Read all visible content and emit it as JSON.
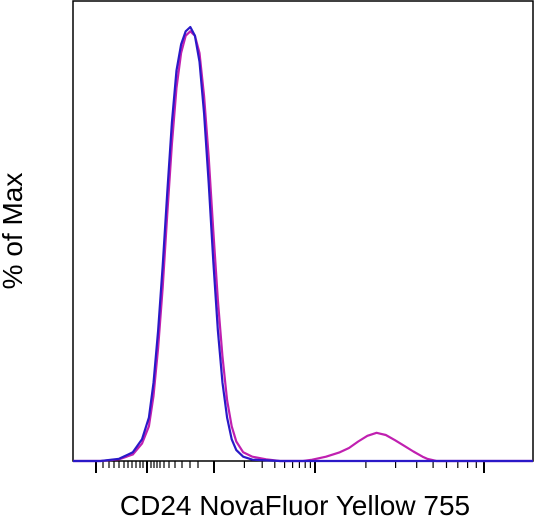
{
  "chart_data": {
    "type": "line",
    "title": "",
    "xlabel": "CD24 NovaFluor Yellow 755",
    "ylabel": "% of Max",
    "xscale": "biexponential (log-like)",
    "xlim": [
      0,
      100
    ],
    "ylim": [
      0,
      100
    ],
    "grid": false,
    "legend": "none",
    "series": [
      {
        "color": "#2a19c8",
        "x": [
          0,
          6,
          10,
          13,
          15,
          16.5,
          17.5,
          18.5,
          19.5,
          20.5,
          21.5,
          22.5,
          23.5,
          24.5,
          25.5,
          26.5,
          27.5,
          28.5,
          29.5,
          30.5,
          31.5,
          32.5,
          33.5,
          34.5,
          35.5,
          37,
          39,
          45,
          100
        ],
        "y": [
          0,
          0,
          0.5,
          2,
          5,
          10,
          18,
          30,
          45,
          62,
          78,
          90,
          96,
          99,
          100,
          98,
          92,
          80,
          64,
          46,
          30,
          18,
          10,
          5,
          2.5,
          1,
          0.3,
          0,
          0
        ]
      },
      {
        "color": "#c020b0",
        "x": [
          0,
          6,
          10,
          13,
          15,
          16.5,
          17.5,
          18.5,
          19.5,
          20.5,
          21.5,
          22.5,
          23.5,
          24.5,
          25.5,
          26.5,
          27.5,
          28.5,
          29.5,
          30.5,
          31.5,
          32.5,
          33.5,
          34.5,
          35.5,
          37,
          39,
          42,
          45,
          48,
          50,
          52,
          55,
          58,
          60,
          62,
          64,
          66,
          68,
          70,
          72,
          74,
          76,
          77,
          79,
          100
        ],
        "y": [
          0,
          0,
          0.4,
          1.5,
          4,
          8,
          15,
          26,
          40,
          57,
          73,
          86,
          94,
          98,
          99,
          98,
          94,
          84,
          70,
          53,
          37,
          24,
          14,
          8,
          4.5,
          2,
          1,
          0.4,
          0,
          0,
          0,
          0.3,
          1,
          2,
          3,
          4.5,
          5.8,
          6.5,
          6,
          4.8,
          3.5,
          2.2,
          1,
          0.5,
          0,
          0
        ]
      }
    ]
  }
}
